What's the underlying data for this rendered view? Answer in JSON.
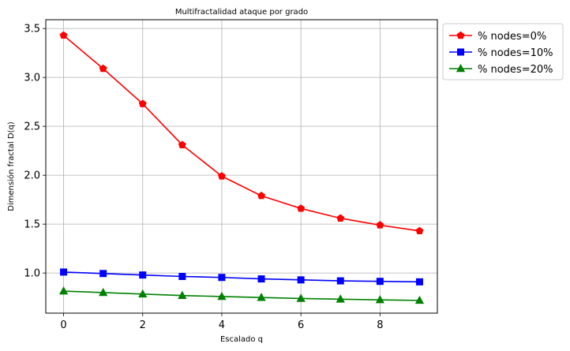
{
  "chart_data": {
    "type": "line",
    "title": "Multifractalidad ataque por grado",
    "xlabel": "Escalado q",
    "ylabel": "Dimensión fractal D(q)",
    "x": [
      0,
      1,
      2,
      3,
      4,
      5,
      6,
      7,
      8,
      9
    ],
    "xlim": [
      -0.45,
      9.45
    ],
    "ylim": [
      0.59,
      3.59
    ],
    "xticks": [
      0,
      2,
      4,
      6,
      8
    ],
    "xtick_labels": [
      "0",
      "2",
      "4",
      "6",
      "8"
    ],
    "yticks": [
      1.0,
      1.5,
      2.0,
      2.5,
      3.0,
      3.5
    ],
    "ytick_labels": [
      "1.0",
      "1.5",
      "2.0",
      "2.5",
      "3.0",
      "3.5"
    ],
    "grid": true,
    "legend_position": "outside-top-right",
    "series": [
      {
        "name": "% nodes=0%",
        "color": "#ff0000",
        "marker": "pentagon",
        "values": [
          3.43,
          3.09,
          2.73,
          2.31,
          1.99,
          1.79,
          1.66,
          1.56,
          1.49,
          1.43
        ]
      },
      {
        "name": "% nodes=10%",
        "color": "#0000ff",
        "marker": "square",
        "values": [
          1.01,
          0.995,
          0.98,
          0.965,
          0.955,
          0.94,
          0.93,
          0.92,
          0.915,
          0.91
        ]
      },
      {
        "name": "% nodes=20%",
        "color": "#008000",
        "marker": "triangle",
        "values": [
          0.815,
          0.8,
          0.785,
          0.77,
          0.76,
          0.75,
          0.74,
          0.733,
          0.726,
          0.72
        ]
      }
    ]
  }
}
